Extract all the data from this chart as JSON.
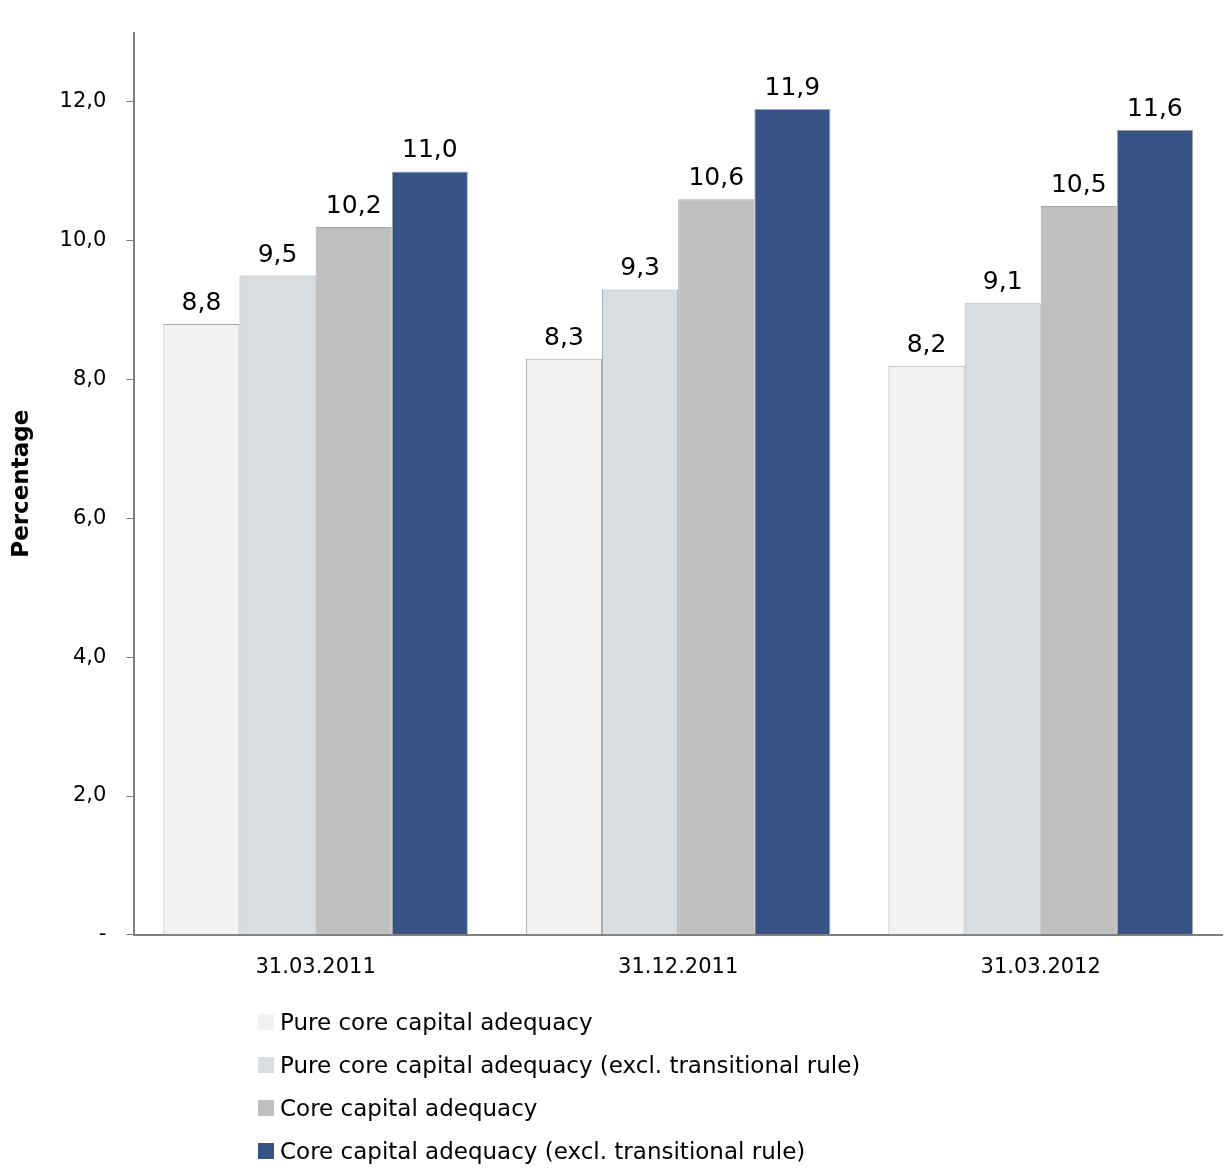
{
  "chart_data": {
    "type": "bar",
    "ylabel": "Percentage",
    "categories": [
      "31.03.2011",
      "31.12.2011",
      "31.03.2012"
    ],
    "series": [
      {
        "name": "Pure core capital adequacy",
        "color": "#f2f2f2",
        "values": [
          8.8,
          8.3,
          8.2
        ],
        "value_labels": [
          "8,8",
          "8,3",
          "8,2"
        ]
      },
      {
        "name": "Pure core capital adequacy (excl. transitional rule)",
        "color": "#d7dde1",
        "values": [
          9.5,
          9.3,
          9.1
        ],
        "value_labels": [
          "9,5",
          "9,3",
          "9,1"
        ]
      },
      {
        "name": "Core capital adequacy",
        "color": "#bfbfbf",
        "values": [
          10.2,
          10.6,
          10.5
        ],
        "value_labels": [
          "10,2",
          "10,6",
          "10,5"
        ]
      },
      {
        "name": "Core capital adequacy (excl. transitional rule)",
        "color": "#355385",
        "values": [
          11.0,
          11.9,
          11.6
        ],
        "value_labels": [
          "11,0",
          "11,9",
          "11,6"
        ]
      }
    ],
    "ylim": [
      0,
      13
    ],
    "yticks": [
      {
        "value": 0,
        "label": "-"
      },
      {
        "value": 2,
        "label": "2,0"
      },
      {
        "value": 4,
        "label": "4,0"
      },
      {
        "value": 6,
        "label": "6,0"
      },
      {
        "value": 8,
        "label": "8,0"
      },
      {
        "value": 10,
        "label": "10,0"
      },
      {
        "value": 12,
        "label": "12,0"
      }
    ],
    "grid": false,
    "legend": "bottom"
  }
}
